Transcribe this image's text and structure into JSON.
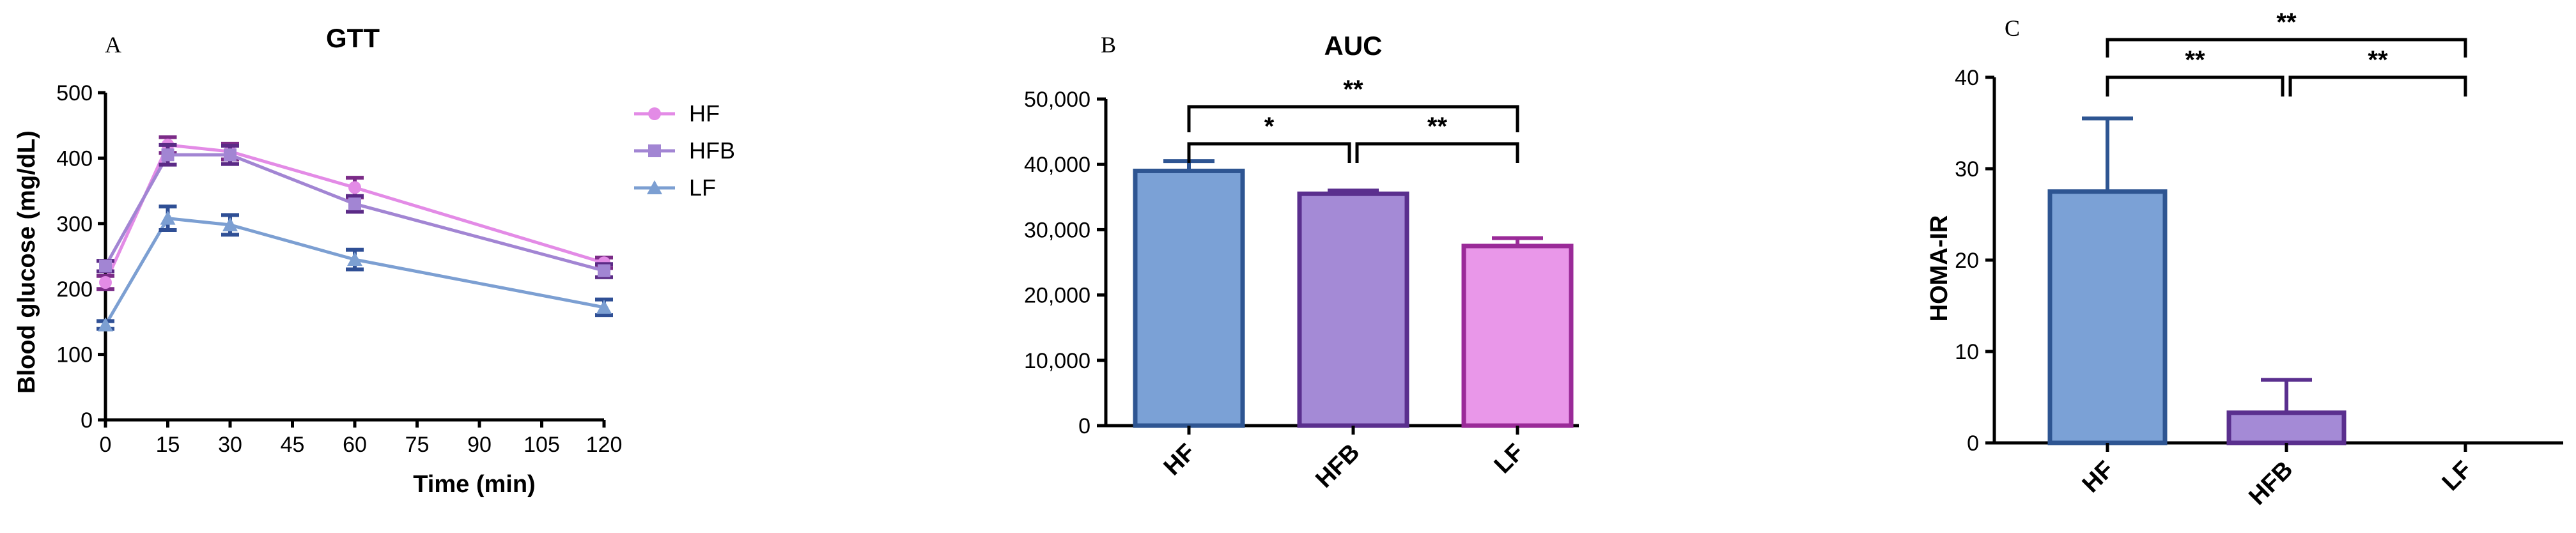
{
  "chart_data": [
    {
      "panel": "A",
      "type": "line",
      "title": "GTT",
      "xlabel": "Time (min)",
      "ylabel": "Blood glucose (mg/dL)",
      "xlim": [
        0,
        120
      ],
      "ylim": [
        0,
        500
      ],
      "xticks": [
        "0",
        "15",
        "30",
        "45",
        "60",
        "75",
        "90",
        "105",
        "120"
      ],
      "yticks": [
        "0",
        "100",
        "200",
        "300",
        "400",
        "500"
      ],
      "x": [
        0,
        15,
        30,
        60,
        120
      ],
      "legend_position": "right",
      "series": [
        {
          "name": "HF",
          "marker": "circle",
          "color": "#e38be6",
          "errcolor": "#7b2b87",
          "values": [
            210,
            420,
            410,
            355,
            240
          ],
          "errors": [
            10,
            12,
            12,
            15,
            8
          ]
        },
        {
          "name": "HFB",
          "marker": "square",
          "color": "#a285d3",
          "errcolor": "#5b2a86",
          "values": [
            235,
            405,
            405,
            330,
            228
          ],
          "errors": [
            8,
            15,
            14,
            12,
            10
          ]
        },
        {
          "name": "LF",
          "marker": "triangle",
          "color": "#7c9fd2",
          "errcolor": "#2f4f95",
          "values": [
            145,
            308,
            298,
            245,
            172
          ],
          "errors": [
            6,
            18,
            15,
            15,
            12
          ]
        }
      ]
    },
    {
      "panel": "B",
      "type": "bar",
      "title": "AUC",
      "ylim": [
        0,
        50000
      ],
      "yticks": [
        "0",
        "10,000",
        "20,000",
        "30,000",
        "40,000",
        "50,000"
      ],
      "categories": [
        "HF",
        "HFB",
        "LF"
      ],
      "values": [
        39000,
        35500,
        27500
      ],
      "errors": [
        1500,
        500,
        1200
      ],
      "fills": [
        "#7ba1d6",
        "#a48ad6",
        "#e997e9"
      ],
      "edges": [
        "#2e5592",
        "#5a2f8e",
        "#9a2a98"
      ],
      "significance": [
        {
          "from": 0,
          "to": 2,
          "label": "**"
        },
        {
          "from": 0,
          "to": 1,
          "label": "*"
        },
        {
          "from": 1,
          "to": 2,
          "label": "**"
        }
      ]
    },
    {
      "panel": "C",
      "type": "bar",
      "title": "",
      "ylabel": "HOMA-IR",
      "ylim": [
        0,
        40
      ],
      "yticks": [
        "0",
        "10",
        "20",
        "30",
        "40"
      ],
      "categories": [
        "HF",
        "HFB",
        "LF"
      ],
      "values": [
        27.5,
        3.3,
        0
      ],
      "errors": [
        8.0,
        3.6,
        0
      ],
      "fills": [
        "#7ba1d6",
        "#a48ad6",
        "#e997e9"
      ],
      "edges": [
        "#2e5592",
        "#5a2f8e",
        "#9a2a98"
      ],
      "significance": [
        {
          "from": 0,
          "to": 2,
          "label": "**"
        },
        {
          "from": 0,
          "to": 1,
          "label": "**"
        },
        {
          "from": 1,
          "to": 2,
          "label": "**"
        }
      ]
    }
  ]
}
